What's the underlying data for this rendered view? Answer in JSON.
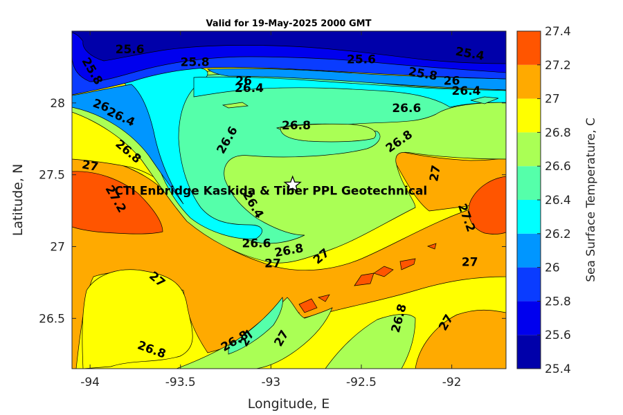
{
  "chart_data": {
    "type": "contour",
    "title": "Valid for 19-May-2025 2000 GMT",
    "xlabel": "Longitude, E",
    "ylabel": "Latitude, N",
    "colorbar_label": "Sea Surface Temperature, C",
    "xlim": [
      -94.1,
      -91.7
    ],
    "ylim": [
      26.15,
      28.5
    ],
    "xticks": [
      -94,
      -93.5,
      -93,
      -92.5,
      -92
    ],
    "xtick_labels": [
      "-94",
      "-93.5",
      "-93",
      "-92.5",
      "-92"
    ],
    "yticks": [
      26.5,
      27,
      27.5,
      28
    ],
    "ytick_labels": [
      "26.5",
      "27",
      "27.5",
      "28"
    ],
    "levels": [
      25.4,
      25.6,
      25.8,
      26,
      26.2,
      26.4,
      26.6,
      26.8,
      27,
      27.2,
      27.4
    ],
    "level_labels": [
      "25.4",
      "25.6",
      "25.8",
      "26",
      "26.2",
      "26.4",
      "26.6",
      "26.8",
      "27",
      "27.2",
      "27.4"
    ],
    "colors": [
      "#0000aa",
      "#0000ee",
      "#0a3cff",
      "#0096ff",
      "#00ffff",
      "#55ffaa",
      "#aaff55",
      "#ffff00",
      "#ffaa00",
      "#ff5500"
    ],
    "marker": {
      "symbol": "star",
      "lon": -92.88,
      "lat": 27.43
    },
    "annotation": {
      "text": "CTI Enbridge  Kaskida & Tiber PPL Geotechnical",
      "lon": -93.0,
      "lat": 27.36
    },
    "contour_labels": [
      {
        "text": "25.6",
        "lon": -93.78,
        "lat": 28.37,
        "rot": 0
      },
      {
        "text": "25.8",
        "lon": -93.42,
        "lat": 28.28,
        "rot": 0
      },
      {
        "text": "25.6",
        "lon": -92.5,
        "lat": 28.3,
        "rot": 0
      },
      {
        "text": "25.4",
        "lon": -91.9,
        "lat": 28.34,
        "rot": 10
      },
      {
        "text": "25.8",
        "lon": -93.99,
        "lat": 28.22,
        "rot": 60
      },
      {
        "text": "25.8",
        "lon": -92.16,
        "lat": 28.2,
        "rot": 10
      },
      {
        "text": "26",
        "lon": -93.15,
        "lat": 28.15,
        "rot": 0
      },
      {
        "text": "26.4",
        "lon": -93.12,
        "lat": 28.1,
        "rot": 0
      },
      {
        "text": "26",
        "lon": -92.0,
        "lat": 28.15,
        "rot": 0
      },
      {
        "text": "26.4",
        "lon": -91.92,
        "lat": 28.08,
        "rot": 0
      },
      {
        "text": "26",
        "lon": -93.94,
        "lat": 27.98,
        "rot": 20
      },
      {
        "text": "26.4",
        "lon": -93.83,
        "lat": 27.9,
        "rot": 25
      },
      {
        "text": "26.6",
        "lon": -92.25,
        "lat": 27.96,
        "rot": 0
      },
      {
        "text": "26.8",
        "lon": -92.86,
        "lat": 27.84,
        "rot": 0
      },
      {
        "text": "26.6",
        "lon": -93.24,
        "lat": 27.74,
        "rot": -60
      },
      {
        "text": "26.8",
        "lon": -92.29,
        "lat": 27.73,
        "rot": -35
      },
      {
        "text": "26.8",
        "lon": -93.79,
        "lat": 27.66,
        "rot": 40
      },
      {
        "text": "27",
        "lon": -94.0,
        "lat": 27.56,
        "rot": 10
      },
      {
        "text": "27",
        "lon": -92.09,
        "lat": 27.51,
        "rot": -80
      },
      {
        "text": "27.2",
        "lon": -93.86,
        "lat": 27.33,
        "rot": 60
      },
      {
        "text": "26.4",
        "lon": -93.1,
        "lat": 27.29,
        "rot": 60
      },
      {
        "text": "27.2",
        "lon": -91.92,
        "lat": 27.2,
        "rot": 70
      },
      {
        "text": "26.6",
        "lon": -93.08,
        "lat": 27.02,
        "rot": 0
      },
      {
        "text": "26.8",
        "lon": -92.9,
        "lat": 26.97,
        "rot": -10
      },
      {
        "text": "27",
        "lon": -92.72,
        "lat": 26.93,
        "rot": -40
      },
      {
        "text": "27",
        "lon": -92.99,
        "lat": 26.88,
        "rot": 0
      },
      {
        "text": "27",
        "lon": -91.9,
        "lat": 26.89,
        "rot": 0
      },
      {
        "text": "27",
        "lon": -93.63,
        "lat": 26.77,
        "rot": 40
      },
      {
        "text": "26.8",
        "lon": -92.29,
        "lat": 26.5,
        "rot": -75
      },
      {
        "text": "27",
        "lon": -92.03,
        "lat": 26.47,
        "rot": -60
      },
      {
        "text": "26.8",
        "lon": -93.2,
        "lat": 26.34,
        "rot": -30
      },
      {
        "text": "27",
        "lon": -93.13,
        "lat": 26.36,
        "rot": -60
      },
      {
        "text": "27",
        "lon": -92.94,
        "lat": 26.36,
        "rot": -60
      },
      {
        "text": "26.8",
        "lon": -93.66,
        "lat": 26.28,
        "rot": 20
      }
    ]
  }
}
